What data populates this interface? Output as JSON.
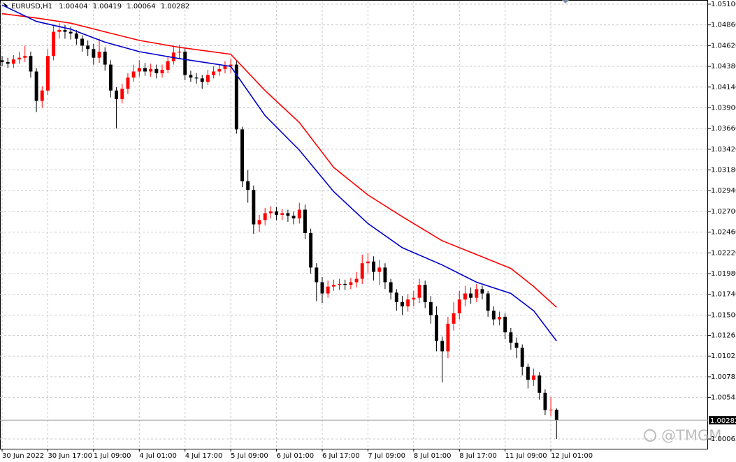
{
  "chart_data": {
    "type": "candlestick",
    "title": "EURUSD,H1",
    "header_values": [
      1.00404,
      1.00419,
      1.00064,
      1.00282
    ],
    "bull_color": "#ff0000",
    "bear_color": "#000000",
    "open": [
      1.0445,
      1.0443,
      1.0441,
      1.0446,
      1.0448,
      1.045,
      1.0432,
      1.0398,
      1.041,
      1.045,
      1.0478,
      1.048,
      1.0478,
      1.0476,
      1.047,
      1.0462,
      1.0458,
      1.0448,
      1.0455,
      1.044,
      1.041,
      1.04,
      1.0412,
      1.0425,
      1.0432,
      1.0436,
      1.0432,
      1.0435,
      1.043,
      1.0434,
      1.0444,
      1.0454,
      1.0455,
      1.0428,
      1.0425,
      1.0424,
      1.042,
      1.0428,
      1.0432,
      1.0435,
      1.0438,
      1.044,
      1.0365,
      1.0305,
      1.0295,
      1.0255,
      1.026,
      1.0268,
      1.027,
      1.0266,
      1.0268,
      1.0265,
      1.0262,
      1.0272,
      1.0245,
      1.0205,
      1.0188,
      1.0175,
      1.0183,
      1.0185,
      1.0186,
      1.0185,
      1.0188,
      1.0192,
      1.021,
      1.0212,
      1.02,
      1.0205,
      1.0188,
      1.0176,
      1.0165,
      1.016,
      1.0168,
      1.017,
      1.0185,
      1.0165,
      1.015,
      1.012,
      1.0108,
      1.014,
      1.0152,
      1.0168,
      1.0175,
      1.017,
      1.018,
      1.0175,
      1.0155,
      1.0145,
      1.0148,
      1.013,
      1.0118,
      1.0112,
      1.009,
      1.0075,
      1.008,
      1.006,
      1.004,
      1.00404
    ],
    "high": [
      1.045,
      1.0448,
      1.0451,
      1.0455,
      1.0462,
      1.0455,
      1.0436,
      1.0415,
      1.0458,
      1.0485,
      1.0488,
      1.0486,
      1.0484,
      1.048,
      1.0474,
      1.0468,
      1.0464,
      1.047,
      1.046,
      1.0445,
      1.0414,
      1.0418,
      1.043,
      1.044,
      1.0445,
      1.0442,
      1.0441,
      1.044,
      1.044,
      1.045,
      1.0462,
      1.0463,
      1.046,
      1.0433,
      1.043,
      1.0428,
      1.0434,
      1.0438,
      1.044,
      1.0444,
      1.0447,
      1.0445,
      1.0368,
      1.0318,
      1.03,
      1.0266,
      1.0274,
      1.0276,
      1.0275,
      1.0273,
      1.0272,
      1.027,
      1.028,
      1.0278,
      1.025,
      1.021,
      1.0194,
      1.019,
      1.0191,
      1.0192,
      1.0191,
      1.0193,
      1.02,
      1.022,
      1.0222,
      1.0218,
      1.0214,
      1.021,
      1.0192,
      1.018,
      1.0172,
      1.0174,
      1.0178,
      1.0192,
      1.019,
      1.0172,
      1.016,
      1.0125,
      1.0148,
      1.0165,
      1.0178,
      1.0184,
      1.0182,
      1.0186,
      1.0184,
      1.0178,
      1.016,
      1.0154,
      1.0152,
      1.0135,
      1.0124,
      1.0116,
      1.0094,
      1.0088,
      1.0084,
      1.0064,
      1.0055,
      1.00419
    ],
    "low": [
      1.0438,
      1.0436,
      1.0436,
      1.0441,
      1.0443,
      1.0425,
      1.0385,
      1.039,
      1.0405,
      1.0445,
      1.047,
      1.047,
      1.0469,
      1.0463,
      1.0455,
      1.045,
      1.044,
      1.0442,
      1.0433,
      1.0402,
      1.0366,
      1.0395,
      1.0406,
      1.042,
      1.0426,
      1.0427,
      1.0426,
      1.0424,
      1.0425,
      1.043,
      1.044,
      1.0446,
      1.0422,
      1.042,
      1.0418,
      1.0412,
      1.0416,
      1.0424,
      1.0427,
      1.043,
      1.043,
      1.036,
      1.0298,
      1.028,
      1.0244,
      1.0246,
      1.0254,
      1.0262,
      1.026,
      1.026,
      1.0258,
      1.0255,
      1.0256,
      1.0238,
      1.0198,
      1.0166,
      1.0164,
      1.017,
      1.0178,
      1.0179,
      1.0179,
      1.018,
      1.0182,
      1.0186,
      1.0198,
      1.019,
      1.0185,
      1.018,
      1.0168,
      1.0155,
      1.015,
      1.0154,
      1.016,
      1.0164,
      1.0158,
      1.014,
      1.0108,
      1.0072,
      1.01,
      1.0132,
      1.0145,
      1.016,
      1.0163,
      1.0165,
      1.0168,
      1.0148,
      1.0138,
      1.0138,
      1.0122,
      1.011,
      1.01,
      1.008,
      1.0065,
      1.0068,
      1.0052,
      1.0034,
      1.0033,
      1.00064
    ],
    "close": [
      1.0443,
      1.0441,
      1.0446,
      1.0448,
      1.045,
      1.0432,
      1.0398,
      1.041,
      1.045,
      1.0478,
      1.048,
      1.0478,
      1.0476,
      1.047,
      1.0462,
      1.0458,
      1.0448,
      1.0455,
      1.044,
      1.041,
      1.04,
      1.0412,
      1.0425,
      1.0432,
      1.0436,
      1.0432,
      1.0435,
      1.043,
      1.0434,
      1.0444,
      1.0454,
      1.0455,
      1.0428,
      1.0425,
      1.0424,
      1.042,
      1.0428,
      1.0432,
      1.0435,
      1.0438,
      1.044,
      1.0365,
      1.0305,
      1.0295,
      1.0255,
      1.026,
      1.0268,
      1.027,
      1.0266,
      1.0268,
      1.0265,
      1.0262,
      1.0272,
      1.0245,
      1.0205,
      1.0188,
      1.0175,
      1.0183,
      1.0185,
      1.0186,
      1.0185,
      1.0188,
      1.0192,
      1.021,
      1.0212,
      1.02,
      1.0205,
      1.0188,
      1.0176,
      1.0165,
      1.016,
      1.0168,
      1.017,
      1.0185,
      1.0165,
      1.015,
      1.012,
      1.0108,
      1.014,
      1.0152,
      1.0168,
      1.0175,
      1.017,
      1.018,
      1.0175,
      1.0155,
      1.0145,
      1.0148,
      1.013,
      1.0118,
      1.0112,
      1.009,
      1.0075,
      1.008,
      1.006,
      1.004,
      1.00404,
      1.00282
    ],
    "lines": [
      {
        "color": "#ff0000",
        "x": [
          0,
          6,
          12,
          18,
          24,
          31,
          40,
          46,
          52,
          58,
          64,
          70,
          77,
          83,
          89,
          93,
          97
        ],
        "values": [
          1.0499,
          1.0494,
          1.0488,
          1.0478,
          1.0468,
          1.046,
          1.0452,
          1.041,
          1.0373,
          1.0321,
          1.0289,
          1.0264,
          1.0236,
          1.022,
          1.0204,
          1.0183,
          1.0159
        ]
      },
      {
        "color": "#0000cc",
        "x": [
          0,
          6,
          12,
          18,
          24,
          31,
          40,
          46,
          52,
          58,
          64,
          70,
          77,
          83,
          89,
          93,
          97
        ],
        "values": [
          1.0509,
          1.049,
          1.0481,
          1.0466,
          1.0455,
          1.0447,
          1.0438,
          1.0381,
          1.0341,
          1.0293,
          1.0256,
          1.0228,
          1.0208,
          1.0188,
          1.0175,
          1.0155,
          1.012
        ]
      }
    ],
    "last_price": 1.00282,
    "xlim": [
      -0.37,
      123.5
    ],
    "ylim": [
      0.99952,
      1.05132
    ],
    "xticks": [
      {
        "value": 0,
        "label": "30 Jun 2022"
      },
      {
        "value": 8,
        "label": "30 Jun 17:00"
      },
      {
        "value": 16,
        "label": "1 Jul 09:00"
      },
      {
        "value": 24,
        "label": "4 Jul 01:00"
      },
      {
        "value": 32,
        "label": "4 Jul 17:00"
      },
      {
        "value": 40,
        "label": "5 Jul 09:00"
      },
      {
        "value": 48,
        "label": "6 Jul 01:00"
      },
      {
        "value": 56,
        "label": "6 Jul 17:00"
      },
      {
        "value": 64,
        "label": "7 Jul 09:00"
      },
      {
        "value": 72,
        "label": "8 Jul 01:00"
      },
      {
        "value": 80,
        "label": "8 Jul 17:00"
      },
      {
        "value": 88,
        "label": "11 Jul 09:00"
      },
      {
        "value": 96,
        "label": "12 Jul 01:00"
      }
    ],
    "yticks": [
      {
        "value": 1.051,
        "label": "1.05100"
      },
      {
        "value": 1.0486,
        "label": "1.04860"
      },
      {
        "value": 1.0462,
        "label": "1.04620"
      },
      {
        "value": 1.0438,
        "label": "1.04380"
      },
      {
        "value": 1.0414,
        "label": "1.04140"
      },
      {
        "value": 1.039,
        "label": "1.03900"
      },
      {
        "value": 1.0366,
        "label": "1.03660"
      },
      {
        "value": 1.0342,
        "label": "1.03420"
      },
      {
        "value": 1.0318,
        "label": "1.03180"
      },
      {
        "value": 1.0294,
        "label": "1.02940"
      },
      {
        "value": 1.027,
        "label": "1.02700"
      },
      {
        "value": 1.0246,
        "label": "1.02460"
      },
      {
        "value": 1.0222,
        "label": "1.02220"
      },
      {
        "value": 1.0198,
        "label": "1.01980"
      },
      {
        "value": 1.0174,
        "label": "1.01740"
      },
      {
        "value": 1.015,
        "label": "1.01500"
      },
      {
        "value": 1.01265,
        "label": "1.01265"
      },
      {
        "value": 1.01025,
        "label": "1.01025"
      },
      {
        "value": 1.00785,
        "label": "1.00785"
      },
      {
        "value": 1.00545,
        "label": "1.00545"
      },
      {
        "value": 1.00065,
        "label": "1.00065"
      }
    ],
    "grid": true,
    "watermark": "@TMGM"
  }
}
